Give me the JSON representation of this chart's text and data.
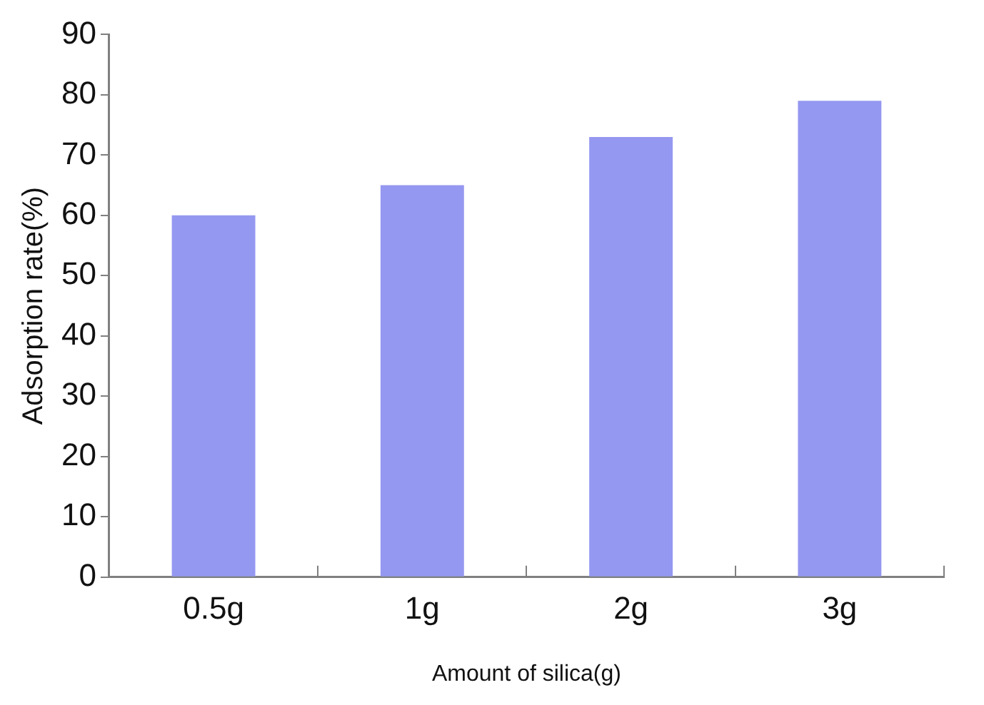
{
  "chart_data": {
    "type": "bar",
    "xlabel": "Amount of silica(g)",
    "ylabel": "Adsorption rate(%)",
    "categories": [
      "0.5g",
      "1g",
      "2g",
      "3g"
    ],
    "values": [
      60,
      65,
      73,
      79
    ],
    "color": "#9598f0",
    "ylim": [
      0,
      90
    ],
    "yticks": [
      0,
      10,
      20,
      30,
      40,
      50,
      60,
      70,
      80,
      90
    ],
    "grid": false,
    "legend": false
  }
}
